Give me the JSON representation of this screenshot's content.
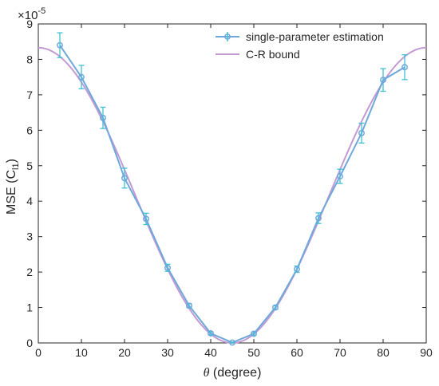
{
  "chart_data": {
    "type": "line",
    "title": "",
    "xlabel_symbol": "θ",
    "xlabel_rest": " (degree)",
    "ylabel_main": "MSE (C",
    "ylabel_sub": "l1",
    "ylabel_close": ")",
    "exponent_base": "×10",
    "exponent_power": "-5",
    "xlim": [
      0,
      90
    ],
    "ylim": [
      0,
      9
    ],
    "xticks": [
      "0",
      "10",
      "20",
      "30",
      "40",
      "50",
      "60",
      "70",
      "80",
      "90"
    ],
    "yticks": [
      "0",
      "1",
      "2",
      "3",
      "4",
      "5",
      "6",
      "7",
      "8",
      "9"
    ],
    "legend_position": "top-right",
    "series": [
      {
        "name": "single-parameter estimation",
        "color": "#6fa8dc",
        "marker": "circle",
        "errorbar_color": "#3fc1d4",
        "x": [
          5,
          10,
          15,
          20,
          25,
          30,
          35,
          40,
          45,
          50,
          55,
          60,
          65,
          70,
          75,
          80,
          85
        ],
        "y": [
          8.4,
          7.5,
          6.35,
          4.65,
          3.5,
          2.12,
          1.05,
          0.27,
          0.01,
          0.26,
          1.0,
          2.08,
          3.52,
          4.7,
          5.92,
          7.42,
          7.78
        ],
        "err": [
          0.35,
          0.33,
          0.3,
          0.28,
          0.16,
          0.1,
          0.06,
          0.04,
          0.01,
          0.04,
          0.05,
          0.09,
          0.15,
          0.2,
          0.28,
          0.32,
          0.35
        ]
      },
      {
        "name": "C-R bound",
        "color": "#c39bd3",
        "function": "8.33*cos(2θ)^2",
        "x": [
          0,
          90
        ],
        "amplitude": 8.33
      }
    ]
  }
}
